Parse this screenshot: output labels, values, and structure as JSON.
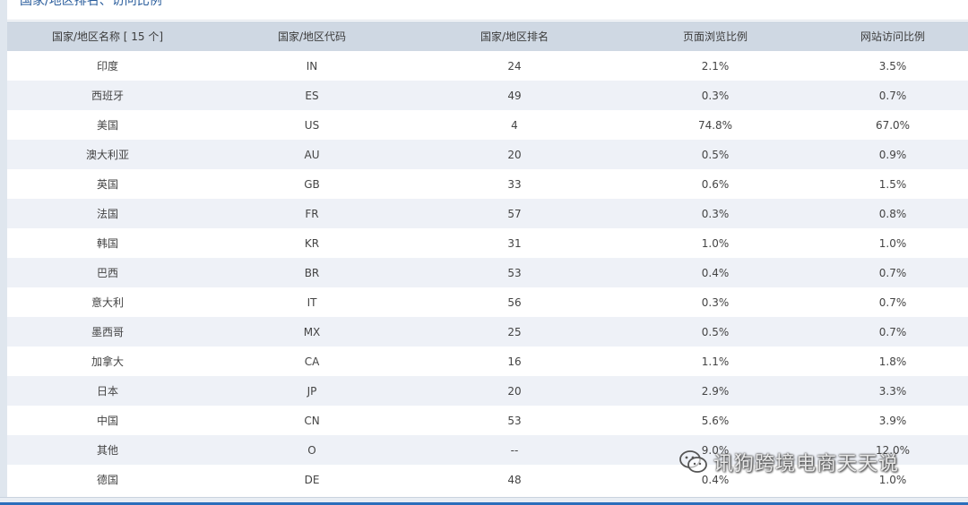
{
  "title": "国家/地区排名、访问比例",
  "table": {
    "headers": [
      "国家/地区名称 [ 15 个]",
      "国家/地区代码",
      "国家/地区排名",
      "页面浏览比例",
      "网站访问比例"
    ],
    "rows": [
      [
        "印度",
        "IN",
        "24",
        "2.1%",
        "3.5%"
      ],
      [
        "西班牙",
        "ES",
        "49",
        "0.3%",
        "0.7%"
      ],
      [
        "美国",
        "US",
        "4",
        "74.8%",
        "67.0%"
      ],
      [
        "澳大利亚",
        "AU",
        "20",
        "0.5%",
        "0.9%"
      ],
      [
        "英国",
        "GB",
        "33",
        "0.6%",
        "1.5%"
      ],
      [
        "法国",
        "FR",
        "57",
        "0.3%",
        "0.8%"
      ],
      [
        "韩国",
        "KR",
        "31",
        "1.0%",
        "1.0%"
      ],
      [
        "巴西",
        "BR",
        "53",
        "0.4%",
        "0.7%"
      ],
      [
        "意大利",
        "IT",
        "56",
        "0.3%",
        "0.7%"
      ],
      [
        "墨西哥",
        "MX",
        "25",
        "0.5%",
        "0.7%"
      ],
      [
        "加拿大",
        "CA",
        "16",
        "1.1%",
        "1.8%"
      ],
      [
        "日本",
        "JP",
        "20",
        "2.9%",
        "3.3%"
      ],
      [
        "中国",
        "CN",
        "53",
        "5.6%",
        "3.9%"
      ],
      [
        "其他",
        "O",
        "--",
        "9.0%",
        "12.0%"
      ],
      [
        "德国",
        "DE",
        "48",
        "0.4%",
        "1.0%"
      ]
    ]
  },
  "watermark": {
    "text": "讯狗跨境电商天天说",
    "icon": "wechat-icon"
  },
  "colors": {
    "header_bg": "#cfd8e3",
    "row_alt_bg": "#eef1f7",
    "title_color": "#2a5d9c",
    "bottom_accent": "#2a6ebb"
  }
}
